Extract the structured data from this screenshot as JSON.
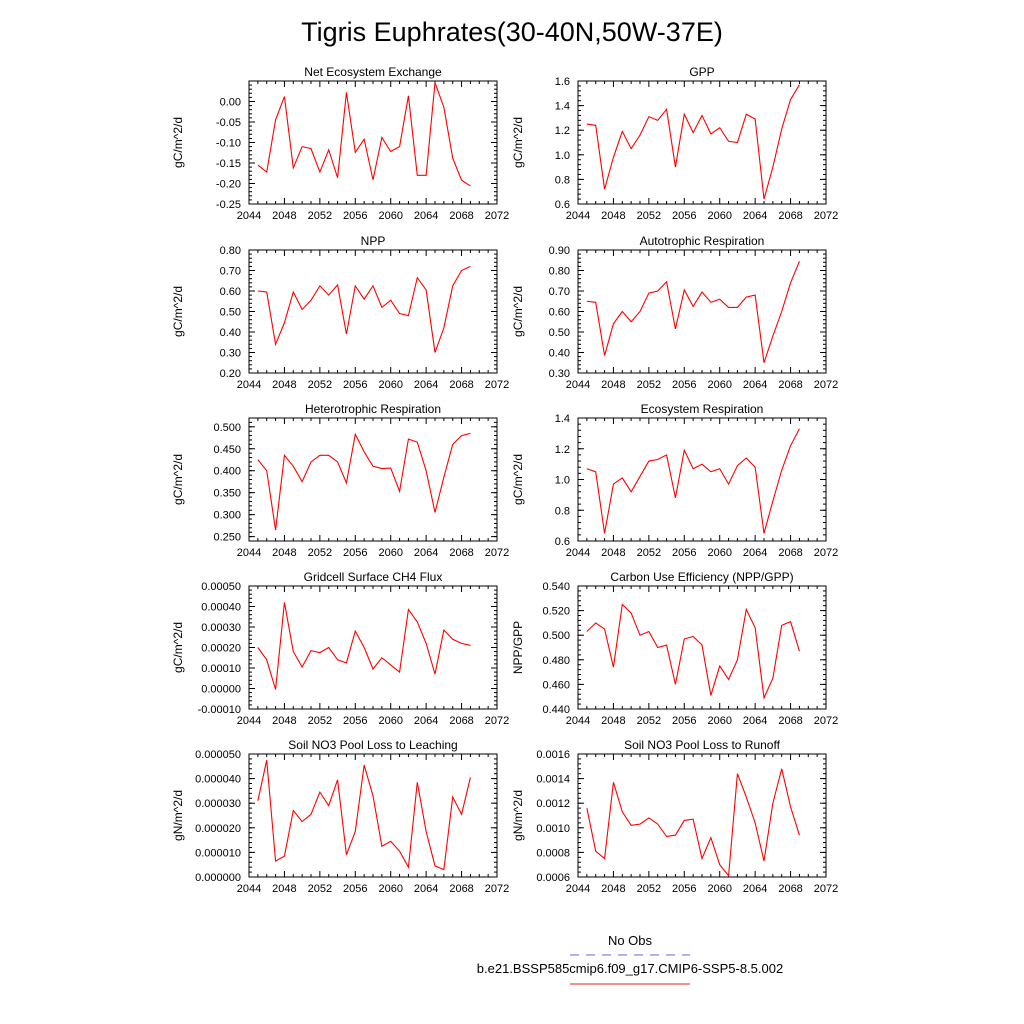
{
  "figure_title": "Tigris Euphrates(30-40N,50W-37E)",
  "legend": {
    "items": [
      {
        "label": "No Obs",
        "color": "#6666ee",
        "dash": "dashed"
      },
      {
        "label": "b.e21.BSSP585cmip6.f09_g17.CMIP6-SSP5-8.5.002",
        "color": "#ee2222",
        "dash": "solid"
      }
    ]
  },
  "line_color": "#ff0000",
  "chart_data": [
    {
      "type": "line",
      "title": "Net Ecosystem Exchange",
      "ylabel": "gC/m^2/d",
      "xlabel": "",
      "xlim": [
        2044,
        2072
      ],
      "ylim": [
        -0.25,
        0.05
      ],
      "xticks": [
        2044,
        2048,
        2052,
        2056,
        2060,
        2064,
        2068,
        2072
      ],
      "yticks": [
        -0.25,
        -0.2,
        -0.15,
        -0.1,
        -0.05,
        0.0
      ],
      "yticklabels": [
        "-0.25",
        "-0.20",
        "-0.15",
        "-0.10",
        "-0.05",
        "0.00"
      ],
      "x": [
        2045,
        2046,
        2047,
        2048,
        2049,
        2050,
        2051,
        2052,
        2053,
        2054,
        2055,
        2056,
        2057,
        2058,
        2059,
        2060,
        2061,
        2062,
        2063,
        2064,
        2065,
        2066,
        2067,
        2068,
        2069
      ],
      "values": [
        -0.155,
        -0.172,
        -0.045,
        0.012,
        -0.162,
        -0.11,
        -0.115,
        -0.172,
        -0.118,
        -0.186,
        0.022,
        -0.124,
        -0.092,
        -0.191,
        -0.088,
        -0.122,
        -0.11,
        0.014,
        -0.18,
        -0.18,
        0.046,
        -0.014,
        -0.138,
        -0.192,
        -0.206
      ]
    },
    {
      "type": "line",
      "title": "GPP",
      "ylabel": "gC/m^2/d",
      "xlabel": "",
      "xlim": [
        2044,
        2072
      ],
      "ylim": [
        0.6,
        1.6
      ],
      "xticks": [
        2044,
        2048,
        2052,
        2056,
        2060,
        2064,
        2068,
        2072
      ],
      "yticks": [
        0.6,
        0.8,
        1.0,
        1.2,
        1.4,
        1.6
      ],
      "yticklabels": [
        "0.6",
        "0.8",
        "1.0",
        "1.2",
        "1.4",
        "1.6"
      ],
      "x": [
        2045,
        2046,
        2047,
        2048,
        2049,
        2050,
        2051,
        2052,
        2053,
        2054,
        2055,
        2056,
        2057,
        2058,
        2059,
        2060,
        2061,
        2062,
        2063,
        2064,
        2065,
        2066,
        2067,
        2068,
        2069
      ],
      "values": [
        1.25,
        1.24,
        0.72,
        0.98,
        1.19,
        1.05,
        1.16,
        1.31,
        1.28,
        1.37,
        0.9,
        1.33,
        1.18,
        1.32,
        1.17,
        1.22,
        1.11,
        1.1,
        1.33,
        1.29,
        0.64,
        0.9,
        1.21,
        1.45,
        1.57
      ]
    },
    {
      "type": "line",
      "title": "NPP",
      "ylabel": "gC/m^2/d",
      "xlabel": "",
      "xlim": [
        2044,
        2072
      ],
      "ylim": [
        0.2,
        0.8
      ],
      "xticks": [
        2044,
        2048,
        2052,
        2056,
        2060,
        2064,
        2068,
        2072
      ],
      "yticks": [
        0.2,
        0.3,
        0.4,
        0.5,
        0.6,
        0.7,
        0.8
      ],
      "yticklabels": [
        "0.20",
        "0.30",
        "0.40",
        "0.50",
        "0.60",
        "0.70",
        "0.80"
      ],
      "x": [
        2045,
        2046,
        2047,
        2048,
        2049,
        2050,
        2051,
        2052,
        2053,
        2054,
        2055,
        2056,
        2057,
        2058,
        2059,
        2060,
        2061,
        2062,
        2063,
        2064,
        2065,
        2066,
        2067,
        2068,
        2069
      ],
      "values": [
        0.6,
        0.595,
        0.34,
        0.445,
        0.595,
        0.51,
        0.555,
        0.625,
        0.58,
        0.63,
        0.39,
        0.625,
        0.56,
        0.625,
        0.52,
        0.555,
        0.49,
        0.48,
        0.665,
        0.605,
        0.3,
        0.42,
        0.625,
        0.7,
        0.72
      ]
    },
    {
      "type": "line",
      "title": "Autotrophic Respiration",
      "ylabel": "gC/m^2/d",
      "xlabel": "",
      "xlim": [
        2044,
        2072
      ],
      "ylim": [
        0.3,
        0.9
      ],
      "xticks": [
        2044,
        2048,
        2052,
        2056,
        2060,
        2064,
        2068,
        2072
      ],
      "yticks": [
        0.3,
        0.4,
        0.5,
        0.6,
        0.7,
        0.8,
        0.9
      ],
      "yticklabels": [
        "0.30",
        "0.40",
        "0.50",
        "0.60",
        "0.70",
        "0.80",
        "0.90"
      ],
      "x": [
        2045,
        2046,
        2047,
        2048,
        2049,
        2050,
        2051,
        2052,
        2053,
        2054,
        2055,
        2056,
        2057,
        2058,
        2059,
        2060,
        2061,
        2062,
        2063,
        2064,
        2065,
        2066,
        2067,
        2068,
        2069
      ],
      "values": [
        0.65,
        0.645,
        0.385,
        0.54,
        0.6,
        0.55,
        0.6,
        0.69,
        0.7,
        0.745,
        0.515,
        0.705,
        0.625,
        0.695,
        0.645,
        0.66,
        0.62,
        0.62,
        0.67,
        0.68,
        0.35,
        0.48,
        0.6,
        0.74,
        0.845
      ]
    },
    {
      "type": "line",
      "title": "Heterotrophic Respiration",
      "ylabel": "gC/m^2/d",
      "xlabel": "",
      "xlim": [
        2044,
        2072
      ],
      "ylim": [
        0.24,
        0.52
      ],
      "xticks": [
        2044,
        2048,
        2052,
        2056,
        2060,
        2064,
        2068,
        2072
      ],
      "yticks": [
        0.25,
        0.3,
        0.35,
        0.4,
        0.45,
        0.5
      ],
      "yticklabels": [
        "0.250",
        "0.300",
        "0.350",
        "0.400",
        "0.450",
        "0.500"
      ],
      "x": [
        2045,
        2046,
        2047,
        2048,
        2049,
        2050,
        2051,
        2052,
        2053,
        2054,
        2055,
        2056,
        2057,
        2058,
        2059,
        2060,
        2061,
        2062,
        2063,
        2064,
        2065,
        2066,
        2067,
        2068,
        2069
      ],
      "values": [
        0.425,
        0.4,
        0.265,
        0.435,
        0.41,
        0.375,
        0.42,
        0.435,
        0.435,
        0.42,
        0.372,
        0.483,
        0.443,
        0.41,
        0.405,
        0.406,
        0.353,
        0.472,
        0.465,
        0.4,
        0.305,
        0.385,
        0.46,
        0.48,
        0.485
      ]
    },
    {
      "type": "line",
      "title": "Ecosystem Respiration",
      "ylabel": "gC/m^2/d",
      "xlabel": "",
      "xlim": [
        2044,
        2072
      ],
      "ylim": [
        0.6,
        1.4
      ],
      "xticks": [
        2044,
        2048,
        2052,
        2056,
        2060,
        2064,
        2068,
        2072
      ],
      "yticks": [
        0.6,
        0.8,
        1.0,
        1.2,
        1.4
      ],
      "yticklabels": [
        "0.6",
        "0.8",
        "1.0",
        "1.2",
        "1.4"
      ],
      "x": [
        2045,
        2046,
        2047,
        2048,
        2049,
        2050,
        2051,
        2052,
        2053,
        2054,
        2055,
        2056,
        2057,
        2058,
        2059,
        2060,
        2061,
        2062,
        2063,
        2064,
        2065,
        2066,
        2067,
        2068,
        2069
      ],
      "values": [
        1.07,
        1.05,
        0.65,
        0.97,
        1.01,
        0.92,
        1.02,
        1.12,
        1.13,
        1.16,
        0.88,
        1.19,
        1.07,
        1.1,
        1.05,
        1.07,
        0.97,
        1.09,
        1.14,
        1.08,
        0.65,
        0.86,
        1.06,
        1.22,
        1.33
      ]
    },
    {
      "type": "line",
      "title": "Gridcell Surface CH4 Flux",
      "ylabel": "gC/m^2/d",
      "xlabel": "",
      "xlim": [
        2044,
        2072
      ],
      "ylim": [
        -0.0001,
        0.0005
      ],
      "xticks": [
        2044,
        2048,
        2052,
        2056,
        2060,
        2064,
        2068,
        2072
      ],
      "yticks": [
        -0.0001,
        0.0,
        0.0001,
        0.0002,
        0.0003,
        0.0004,
        0.0005
      ],
      "yticklabels": [
        "-0.00010",
        "0.00000",
        "0.00010",
        "0.00020",
        "0.00030",
        "0.00040",
        "0.00050"
      ],
      "x": [
        2045,
        2046,
        2047,
        2048,
        2049,
        2050,
        2051,
        2052,
        2053,
        2054,
        2055,
        2056,
        2057,
        2058,
        2059,
        2060,
        2061,
        2062,
        2063,
        2064,
        2065,
        2066,
        2067,
        2068,
        2069
      ],
      "values": [
        0.0002,
        0.00014,
        -5e-06,
        0.00042,
        0.00018,
        0.000105,
        0.000185,
        0.000175,
        0.0002,
        0.00014,
        0.000125,
        0.00028,
        0.0002,
        9.5e-05,
        0.00015,
        0.000115,
        8e-05,
        0.000385,
        0.000325,
        0.00022,
        7e-05,
        0.000285,
        0.00024,
        0.00022,
        0.00021
      ]
    },
    {
      "type": "line",
      "title": "Carbon Use Efficiency (NPP/GPP)",
      "ylabel": "NPP/GPP",
      "xlabel": "",
      "xlim": [
        2044,
        2072
      ],
      "ylim": [
        0.44,
        0.54
      ],
      "xticks": [
        2044,
        2048,
        2052,
        2056,
        2060,
        2064,
        2068,
        2072
      ],
      "yticks": [
        0.44,
        0.46,
        0.48,
        0.5,
        0.52,
        0.54
      ],
      "yticklabels": [
        "0.440",
        "0.460",
        "0.480",
        "0.500",
        "0.520",
        "0.540"
      ],
      "x": [
        2045,
        2046,
        2047,
        2048,
        2049,
        2050,
        2051,
        2052,
        2053,
        2054,
        2055,
        2056,
        2057,
        2058,
        2059,
        2060,
        2061,
        2062,
        2063,
        2064,
        2065,
        2066,
        2067,
        2068,
        2069
      ],
      "values": [
        0.503,
        0.51,
        0.505,
        0.474,
        0.525,
        0.518,
        0.5,
        0.503,
        0.49,
        0.492,
        0.46,
        0.497,
        0.499,
        0.492,
        0.451,
        0.475,
        0.464,
        0.48,
        0.521,
        0.506,
        0.449,
        0.465,
        0.508,
        0.511,
        0.487
      ]
    },
    {
      "type": "line",
      "title": "Soil NO3 Pool Loss to Leaching",
      "ylabel": "gN/m^2/d",
      "xlabel": "",
      "xlim": [
        2044,
        2072
      ],
      "ylim": [
        0.0,
        5e-05
      ],
      "xticks": [
        2044,
        2048,
        2052,
        2056,
        2060,
        2064,
        2068,
        2072
      ],
      "yticks": [
        0.0,
        1e-05,
        2e-05,
        3e-05,
        4e-05,
        5e-05
      ],
      "yticklabels": [
        "0.000000",
        "0.000010",
        "0.000020",
        "0.000030",
        "0.000040",
        "0.000050"
      ],
      "x": [
        2045,
        2046,
        2047,
        2048,
        2049,
        2050,
        2051,
        2052,
        2053,
        2054,
        2055,
        2056,
        2057,
        2058,
        2059,
        2060,
        2061,
        2062,
        2063,
        2064,
        2065,
        2066,
        2067,
        2068,
        2069
      ],
      "values": [
        3.1e-05,
        4.75e-05,
        6.5e-06,
        8.5e-06,
        2.7e-05,
        2.25e-05,
        2.55e-05,
        3.45e-05,
        2.9e-05,
        3.95e-05,
        9e-06,
        1.85e-05,
        4.55e-05,
        3.3e-05,
        1.25e-05,
        1.45e-05,
        1.05e-05,
        4e-06,
        3.85e-05,
        1.85e-05,
        4.5e-06,
        3e-06,
        3.25e-05,
        2.55e-05,
        4.05e-05
      ]
    },
    {
      "type": "line",
      "title": "Soil NO3 Pool Loss to Runoff",
      "ylabel": "gN/m^2/d",
      "xlabel": "",
      "xlim": [
        2044,
        2072
      ],
      "ylim": [
        0.0006,
        0.0016
      ],
      "xticks": [
        2044,
        2048,
        2052,
        2056,
        2060,
        2064,
        2068,
        2072
      ],
      "yticks": [
        0.0006,
        0.0008,
        0.001,
        0.0012,
        0.0014,
        0.0016
      ],
      "yticklabels": [
        "0.0006",
        "0.0008",
        "0.0010",
        "0.0012",
        "0.0014",
        "0.0016"
      ],
      "x": [
        2045,
        2046,
        2047,
        2048,
        2049,
        2050,
        2051,
        2052,
        2053,
        2054,
        2055,
        2056,
        2057,
        2058,
        2059,
        2060,
        2061,
        2062,
        2063,
        2064,
        2065,
        2066,
        2067,
        2068,
        2069
      ],
      "values": [
        0.00116,
        0.00081,
        0.00075,
        0.00137,
        0.00113,
        0.00102,
        0.00103,
        0.00108,
        0.00103,
        0.00093,
        0.00094,
        0.00106,
        0.00107,
        0.00075,
        0.00092,
        0.0007,
        0.00061,
        0.00144,
        0.00125,
        0.00104,
        0.00073,
        0.0012,
        0.00148,
        0.00117,
        0.00094
      ]
    }
  ]
}
